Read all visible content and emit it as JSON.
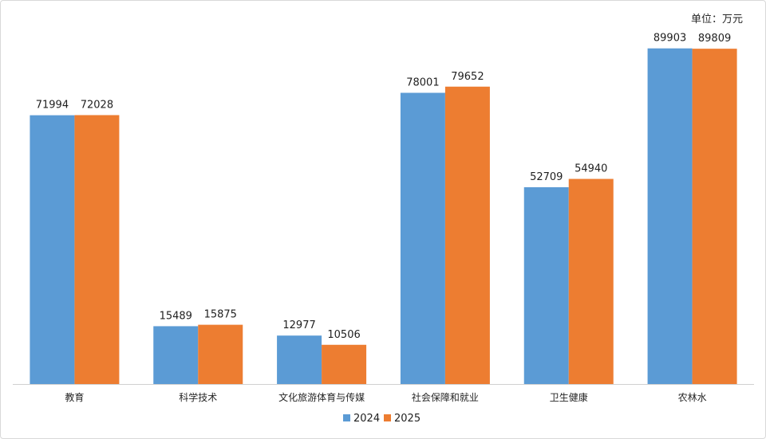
{
  "unit_label": "单位：万元",
  "chart_data": {
    "type": "bar",
    "categories": [
      "教育",
      "科学技术",
      "文化旅游体育与传媒",
      "社会保障和就业",
      "卫生健康",
      "农林水"
    ],
    "series": [
      {
        "name": "2024",
        "color": "#5b9bd5",
        "values": [
          71994,
          15489,
          12977,
          78001,
          52709,
          89903
        ]
      },
      {
        "name": "2025",
        "color": "#ed7d31",
        "values": [
          72028,
          15875,
          10506,
          79652,
          54940,
          89809
        ]
      }
    ],
    "ylim": [
      0,
      95000
    ],
    "grid": false,
    "data_labels": true,
    "legend_position": "bottom-center"
  }
}
